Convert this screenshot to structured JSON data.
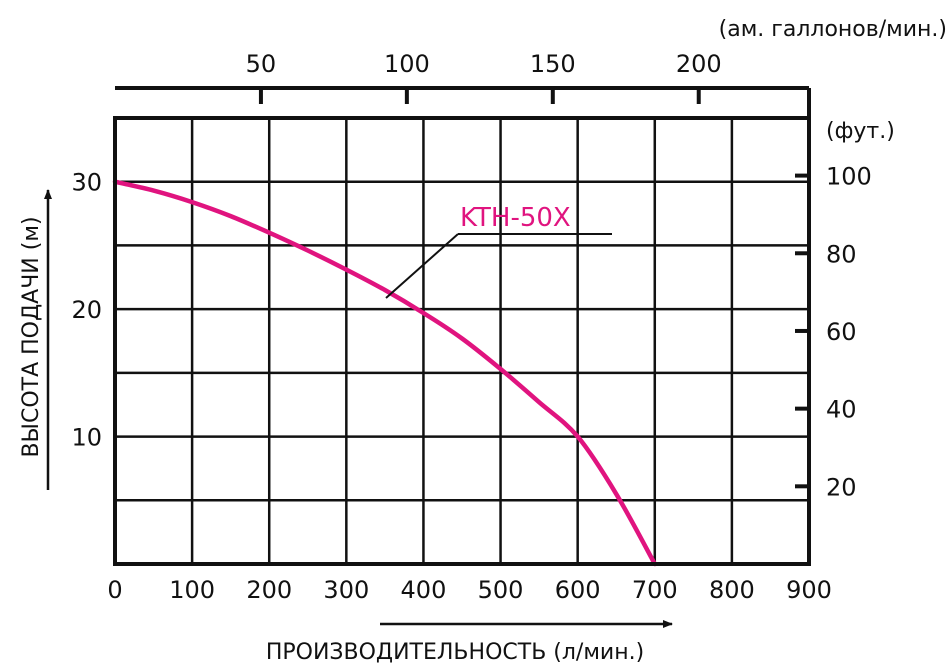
{
  "chart_data": {
    "type": "line",
    "x_ticks": [
      0,
      100,
      200,
      300,
      400,
      500,
      600,
      700,
      800,
      900
    ],
    "y_ticks": [
      10,
      20,
      30
    ],
    "xlim": [
      0,
      900
    ],
    "ylim": [
      0,
      35
    ],
    "xlabel": "ПРОИЗВОДИТЕЛЬНОСТЬ (л/мин.)",
    "ylabel": "ВЫСОТА ПОДАЧИ (м)",
    "secondary_x": {
      "label": "(ам. галлонов/мин.)",
      "ticks": [
        50,
        100,
        150,
        200
      ],
      "factor_lpm_per_unit": 3.785
    },
    "secondary_y": {
      "label": "(фут.)",
      "ticks": [
        20,
        40,
        60,
        80,
        100
      ],
      "factor_m_per_unit": 0.3048
    },
    "grid": true,
    "series": [
      {
        "name": "KTH-50X",
        "color": "#e0147f",
        "x": [
          0,
          50,
          100,
          150,
          200,
          250,
          300,
          350,
          400,
          450,
          500,
          550,
          600,
          650,
          700
        ],
        "y": [
          30,
          29.3,
          28.4,
          27.3,
          26,
          24.6,
          23.1,
          21.5,
          19.7,
          17.7,
          15.3,
          12.7,
          10,
          5.5,
          0
        ]
      }
    ]
  }
}
